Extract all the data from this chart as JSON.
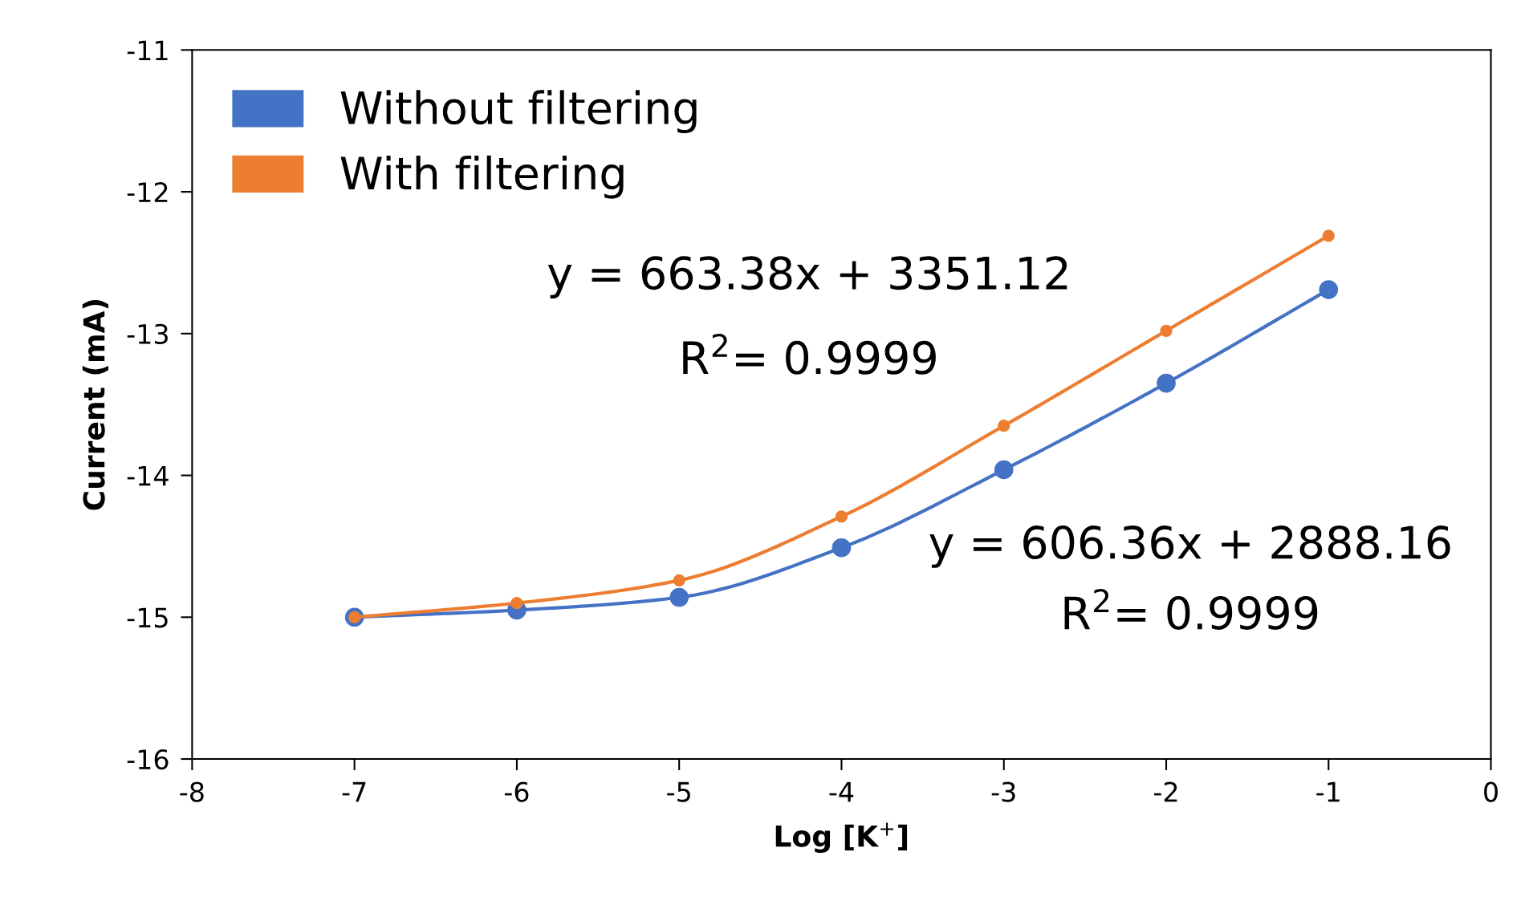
{
  "chart_data": {
    "type": "line",
    "xlabel": "Log [K$^{+}$]",
    "ylabel": "Current (mA)",
    "x": [
      -7,
      -6,
      -5,
      -4,
      -3,
      -2,
      -1
    ],
    "series": [
      {
        "name": "Without filtering",
        "color": "#4472c4",
        "values": [
          -15.0,
          -14.95,
          -14.86,
          -14.51,
          -13.96,
          -13.35,
          -12.69
        ]
      },
      {
        "name": "With filtering",
        "color": "#ed7d31",
        "values": [
          -15.0,
          -14.9,
          -14.74,
          -14.29,
          -13.65,
          -12.98,
          -12.31
        ]
      }
    ],
    "xlim": [
      -8,
      0
    ],
    "xticks": [
      -8,
      -7,
      -6,
      -5,
      -4,
      -3,
      -2,
      -1,
      0
    ],
    "ylim": [
      -16,
      -11
    ],
    "yticks": [
      -16,
      -15,
      -14,
      -13,
      -12,
      -11
    ],
    "annotations": [
      "y = 663.38x + 3351.12",
      "R$^{2}$= 0.9999",
      "y = 606.36x + 2888.16",
      "R$^{2}$= 0.9999"
    ],
    "marker": "circle",
    "line_style": "solid",
    "grid": false,
    "legend": "top left"
  }
}
